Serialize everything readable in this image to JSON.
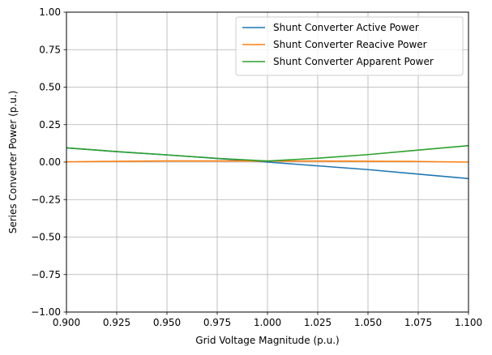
{
  "chart_data": {
    "type": "line",
    "xlabel": "Grid Voltage Magnitude (p.u.)",
    "ylabel": "Series Converter Power (p.u.)",
    "xlim": [
      0.9,
      1.1
    ],
    "ylim": [
      -1.0,
      1.0
    ],
    "x_ticks": [
      "0.900",
      "0.925",
      "0.950",
      "0.975",
      "1.000",
      "1.025",
      "1.050",
      "1.075",
      "1.100"
    ],
    "y_ticks": [
      "−1.00",
      "−0.75",
      "−0.50",
      "−0.25",
      "0.00",
      "0.25",
      "0.50",
      "0.75",
      "1.00"
    ],
    "grid": true,
    "legend_position": "top-right",
    "x": [
      0.9,
      0.925,
      0.95,
      0.975,
      1.0,
      1.025,
      1.05,
      1.075,
      1.1
    ],
    "series": [
      {
        "name": "Shunt Converter Active Power",
        "color": "#1f77b4",
        "values": [
          0.095,
          0.07,
          0.048,
          0.024,
          0.0,
          -0.025,
          -0.05,
          -0.08,
          -0.11
        ]
      },
      {
        "name": "Shunt Converter Reacive Power",
        "color": "#ff7f0e",
        "values": [
          0.002,
          0.005,
          0.008,
          0.008,
          0.007,
          0.007,
          0.006,
          0.004,
          0.0
        ]
      },
      {
        "name": "Shunt Converter Apparent Power",
        "color": "#2ca02c",
        "values": [
          0.095,
          0.07,
          0.048,
          0.025,
          0.007,
          0.026,
          0.05,
          0.08,
          0.11
        ]
      }
    ]
  }
}
